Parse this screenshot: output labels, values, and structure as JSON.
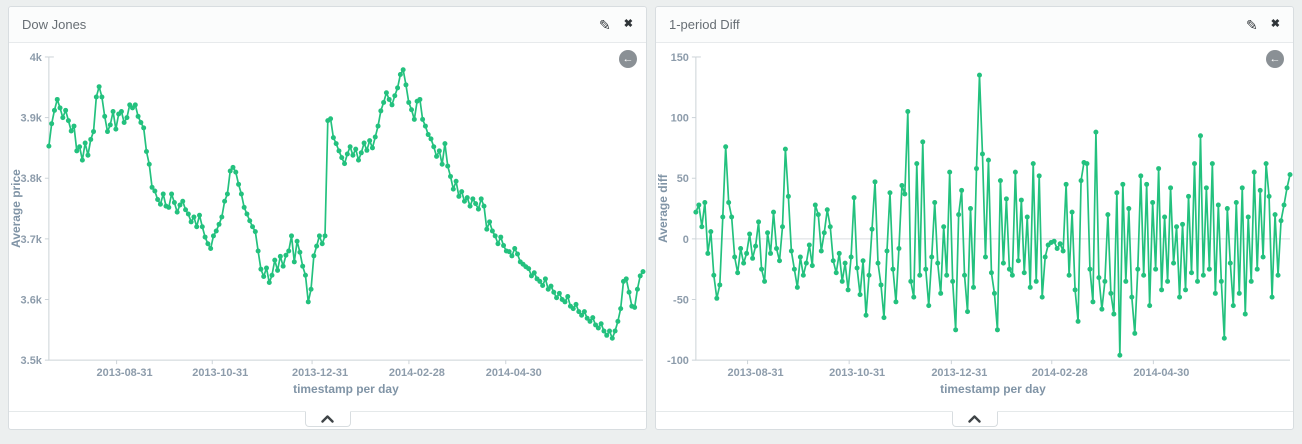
{
  "icons": {
    "edit": "✎",
    "close": "✖",
    "reset_zoom": "←"
  },
  "panels": [
    {
      "title": "Dow Jones"
    },
    {
      "title": "1-period Diff"
    }
  ],
  "chart_data": [
    {
      "type": "line",
      "title": "Dow Jones",
      "xlabel": "timestamp per day",
      "ylabel": "Average price",
      "ylim": [
        3500,
        4000
      ],
      "grid": false,
      "zero_line": false,
      "legend": "none",
      "line_color": "#23c17e",
      "yticks": [
        {
          "value": 3500,
          "label": "3.5k"
        },
        {
          "value": 3600,
          "label": "3.6k"
        },
        {
          "value": 3700,
          "label": "3.7k"
        },
        {
          "value": 3800,
          "label": "3.8k"
        },
        {
          "value": 3900,
          "label": "3.9k"
        },
        {
          "value": 4000,
          "label": "4k"
        }
      ],
      "xticks": [
        {
          "label": "2013-08-31",
          "pos": 0.114
        },
        {
          "label": "2013-10-31",
          "pos": 0.275
        },
        {
          "label": "2013-12-31",
          "pos": 0.443
        },
        {
          "label": "2014-02-28",
          "pos": 0.606
        },
        {
          "label": "2014-04-30",
          "pos": 0.769
        }
      ],
      "series": [
        {
          "name": "Average price",
          "values": [
            3853,
            3890,
            3912,
            3930,
            3916,
            3900,
            3912,
            3895,
            3878,
            3886,
            3845,
            3852,
            3830,
            3858,
            3838,
            3864,
            3877,
            3934,
            3951,
            3934,
            3902,
            3877,
            3888,
            3910,
            3881,
            3906,
            3910,
            3892,
            3900,
            3921,
            3916,
            3921,
            3902,
            3892,
            3883,
            3844,
            3823,
            3785,
            3779,
            3765,
            3757,
            3774,
            3754,
            3752,
            3774,
            3760,
            3744,
            3756,
            3762,
            3748,
            3741,
            3728,
            3736,
            3720,
            3739,
            3720,
            3703,
            3692,
            3684,
            3705,
            3713,
            3724,
            3736,
            3762,
            3774,
            3812,
            3818,
            3810,
            3790,
            3774,
            3752,
            3741,
            3730,
            3720,
            3712,
            3680,
            3650,
            3638,
            3652,
            3628,
            3640,
            3665,
            3648,
            3671,
            3655,
            3673,
            3680,
            3705,
            3662,
            3696,
            3678,
            3655,
            3640,
            3596,
            3617,
            3672,
            3688,
            3705,
            3692,
            3705,
            3895,
            3898,
            3867,
            3857,
            3845,
            3834,
            3824,
            3840,
            3852,
            3838,
            3848,
            3830,
            3842,
            3858,
            3846,
            3862,
            3850,
            3868,
            3886,
            3911,
            3925,
            3941,
            3930,
            3921,
            3936,
            3949,
            3971,
            3979,
            3954,
            3925,
            3913,
            3897,
            3927,
            3930,
            3897,
            3886,
            3872,
            3865,
            3852,
            3836,
            3845,
            3823,
            3857,
            3820,
            3803,
            3782,
            3795,
            3770,
            3778,
            3762,
            3768,
            3754,
            3766,
            3758,
            3749,
            3766,
            3754,
            3716,
            3728,
            3713,
            3705,
            3692,
            3703,
            3689,
            3680,
            3679,
            3672,
            3684,
            3675,
            3662,
            3658,
            3654,
            3651,
            3639,
            3644,
            3634,
            3630,
            3623,
            3634,
            3617,
            3622,
            3612,
            3603,
            3610,
            3600,
            3596,
            3605,
            3589,
            3585,
            3592,
            3580,
            3574,
            3580,
            3569,
            3564,
            3570,
            3558,
            3553,
            3560,
            3548,
            3541,
            3548,
            3536,
            3548,
            3564,
            3585,
            3630,
            3634,
            3612,
            3589,
            3587,
            3617,
            3639,
            3646
          ]
        }
      ]
    },
    {
      "type": "line",
      "title": "1-period Diff",
      "xlabel": "timestamp per day",
      "ylabel": "Average diff",
      "ylim": [
        -100,
        150
      ],
      "grid": false,
      "zero_line": true,
      "legend": "none",
      "line_color": "#23c17e",
      "yticks": [
        {
          "value": -100,
          "label": "-100"
        },
        {
          "value": -50,
          "label": "-50"
        },
        {
          "value": 0,
          "label": "0"
        },
        {
          "value": 50,
          "label": "50"
        },
        {
          "value": 100,
          "label": "100"
        },
        {
          "value": 150,
          "label": "150"
        }
      ],
      "xticks": [
        {
          "label": "2013-08-31",
          "pos": 0.087
        },
        {
          "label": "2013-10-31",
          "pos": 0.258
        },
        {
          "label": "2013-12-31",
          "pos": 0.43
        },
        {
          "label": "2014-02-28",
          "pos": 0.599
        },
        {
          "label": "2014-04-30",
          "pos": 0.77
        }
      ],
      "series": [
        {
          "name": "Average diff",
          "values": [
            22,
            28,
            10,
            30,
            -12,
            6,
            -30,
            -49,
            -38,
            18,
            76,
            30,
            18,
            -15,
            -28,
            -8,
            -20,
            -12,
            4,
            -16,
            -6,
            14,
            -25,
            -35,
            5,
            -12,
            22,
            -8,
            -18,
            10,
            74,
            35,
            -10,
            -25,
            -40,
            -15,
            -30,
            -20,
            -5,
            -22,
            28,
            20,
            -10,
            5,
            24,
            10,
            -18,
            -28,
            -12,
            -35,
            -20,
            -42,
            -15,
            34,
            -24,
            -46,
            -18,
            -63,
            -30,
            8,
            47,
            -20,
            -38,
            -65,
            -10,
            38,
            -25,
            -52,
            -8,
            44,
            37,
            105,
            -35,
            -48,
            62,
            -30,
            80,
            -25,
            -55,
            -15,
            30,
            -20,
            -45,
            10,
            -30,
            55,
            -35,
            -75,
            20,
            40,
            -30,
            -60,
            25,
            -40,
            58,
            135,
            70,
            -15,
            65,
            -28,
            -45,
            -75,
            48,
            -20,
            33,
            -25,
            -30,
            55,
            -18,
            32,
            -28,
            18,
            -40,
            62,
            -35,
            52,
            -48,
            -15,
            -5,
            -3,
            -2,
            -8,
            -4,
            -10,
            45,
            -30,
            22,
            -42,
            -68,
            48,
            63,
            62,
            -25,
            -52,
            88,
            -32,
            -58,
            -35,
            20,
            -45,
            -62,
            38,
            -96,
            45,
            -35,
            25,
            -48,
            -78,
            -25,
            52,
            -30,
            45,
            -55,
            30,
            -25,
            58,
            -42,
            18,
            -35,
            42,
            -20,
            10,
            -48,
            12,
            -42,
            35,
            -28,
            62,
            -35,
            85,
            -30,
            42,
            -25,
            62,
            -45,
            28,
            -35,
            -82,
            25,
            -20,
            -55,
            30,
            -45,
            42,
            -62,
            18,
            -35,
            55,
            -25,
            40,
            -15,
            62,
            35,
            -48,
            20,
            -30,
            15,
            28,
            42,
            53
          ]
        }
      ]
    }
  ]
}
